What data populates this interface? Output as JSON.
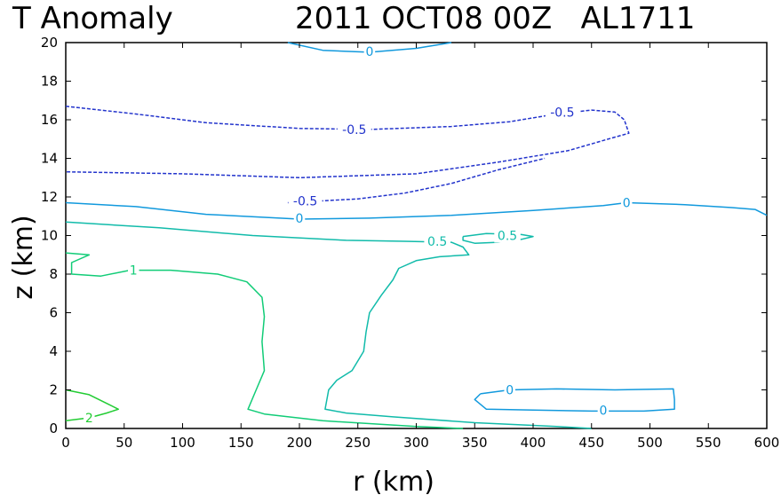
{
  "chart_data": {
    "type": "contour",
    "title_left": "T Anomaly",
    "title_right": "2011 OCT08 00Z   AL1711",
    "xlabel": "r (km)",
    "ylabel": "z (km)",
    "xlim": [
      0,
      600
    ],
    "ylim": [
      0,
      20
    ],
    "xticks": [
      0,
      50,
      100,
      150,
      200,
      250,
      300,
      350,
      400,
      450,
      500,
      550,
      600
    ],
    "yticks": [
      0,
      2,
      4,
      6,
      8,
      10,
      12,
      14,
      16,
      18,
      20
    ],
    "grid": false,
    "levels": [
      {
        "level": "-0.5",
        "color": "#2233cc",
        "dashed": true,
        "contours": [
          {
            "points": [
              [
                0,
                16.7
              ],
              [
                60,
                16.3
              ],
              [
                120,
                15.85
              ],
              [
                200,
                15.55
              ],
              [
                260,
                15.5
              ],
              [
                330,
                15.65
              ],
              [
                380,
                15.9
              ],
              [
                420,
                16.3
              ],
              [
                450,
                16.5
              ],
              [
                470,
                16.4
              ],
              [
                478,
                16.0
              ],
              [
                482,
                15.3
              ],
              [
                470,
                15.1
              ],
              [
                430,
                14.4
              ],
              [
                370,
                13.8
              ],
              [
                300,
                13.2
              ],
              [
                200,
                13.0
              ],
              [
                100,
                13.2
              ],
              [
                0,
                13.3
              ]
            ],
            "labels": [
              {
                "text": "-0.5",
                "x": 247,
                "y": 15.5
              },
              {
                "text": "-0.5",
                "x": 425,
                "y": 16.4
              }
            ]
          },
          {
            "points": [
              [
                190,
                11.7
              ],
              [
                250,
                11.9
              ],
              [
                290,
                12.2
              ],
              [
                330,
                12.7
              ],
              [
                370,
                13.4
              ],
              [
                410,
                14.0
              ]
            ],
            "labels": [
              {
                "text": "-0.5",
                "x": 205,
                "y": 11.8
              }
            ]
          }
        ]
      },
      {
        "level": "0",
        "color": "#1199dd",
        "dashed": false,
        "contours": [
          {
            "points": [
              [
                190,
                20.0
              ],
              [
                220,
                19.6
              ],
              [
                260,
                19.5
              ],
              [
                300,
                19.7
              ],
              [
                330,
                20.0
              ]
            ],
            "labels": [
              {
                "text": "0",
                "x": 260,
                "y": 19.55
              }
            ]
          },
          {
            "points": [
              [
                0,
                11.7
              ],
              [
                60,
                11.5
              ],
              [
                120,
                11.1
              ],
              [
                200,
                10.85
              ],
              [
                260,
                10.9
              ],
              [
                330,
                11.05
              ],
              [
                400,
                11.3
              ],
              [
                460,
                11.55
              ],
              [
                480,
                11.7
              ],
              [
                530,
                11.6
              ],
              [
                570,
                11.45
              ],
              [
                590,
                11.35
              ],
              [
                600,
                11.05
              ]
            ],
            "labels": [
              {
                "text": "0",
                "x": 200,
                "y": 10.9
              },
              {
                "text": "0",
                "x": 480,
                "y": 11.7
              }
            ]
          },
          {
            "points": [
              [
                355,
                1.8
              ],
              [
                380,
                2.0
              ],
              [
                420,
                2.05
              ],
              [
                470,
                2.0
              ],
              [
                520,
                2.05
              ],
              [
                521,
                1.5
              ],
              [
                521,
                1.0
              ],
              [
                495,
                0.9
              ],
              [
                450,
                0.9
              ],
              [
                400,
                0.95
              ],
              [
                360,
                1.0
              ],
              [
                350,
                1.5
              ],
              [
                355,
                1.8
              ]
            ],
            "labels": [
              {
                "text": "0",
                "x": 380,
                "y": 2.0
              },
              {
                "text": "0",
                "x": 460,
                "y": 0.95
              }
            ]
          }
        ]
      },
      {
        "level": "0.5",
        "color": "#11bbaa",
        "dashed": false,
        "contours": [
          {
            "points": [
              [
                0,
                10.7
              ],
              [
                80,
                10.4
              ],
              [
                160,
                10.0
              ],
              [
                240,
                9.75
              ],
              [
                290,
                9.7
              ],
              [
                330,
                9.65
              ],
              [
                340,
                9.4
              ],
              [
                345,
                9.0
              ],
              [
                320,
                8.9
              ],
              [
                300,
                8.7
              ],
              [
                285,
                8.3
              ],
              [
                280,
                7.7
              ],
              [
                270,
                6.9
              ],
              [
                260,
                6.0
              ],
              [
                257,
                5.0
              ],
              [
                255,
                4.0
              ],
              [
                245,
                3.0
              ],
              [
                232,
                2.5
              ],
              [
                225,
                2.0
              ],
              [
                222,
                1.0
              ],
              [
                240,
                0.8
              ],
              [
                280,
                0.6
              ],
              [
                350,
                0.3
              ],
              [
                420,
                0.1
              ],
              [
                450,
                0.0
              ]
            ],
            "labels": [
              {
                "text": "0.5",
                "x": 318,
                "y": 9.7
              }
            ]
          },
          {
            "points": [
              [
                340,
                9.95
              ],
              [
                360,
                10.1
              ],
              [
                390,
                10.05
              ],
              [
                400,
                9.95
              ],
              [
                390,
                9.8
              ],
              [
                370,
                9.65
              ],
              [
                350,
                9.6
              ],
              [
                340,
                9.75
              ],
              [
                340,
                9.95
              ]
            ],
            "labels": [
              {
                "text": "0.5",
                "x": 378,
                "y": 10.0
              }
            ]
          }
        ]
      },
      {
        "level": "1",
        "color": "#11cc77",
        "dashed": false,
        "contours": [
          {
            "points": [
              [
                0,
                9.1
              ],
              [
                20,
                9.0
              ],
              [
                5,
                8.6
              ],
              [
                5,
                8.0
              ],
              [
                30,
                7.9
              ],
              [
                55,
                8.2
              ],
              [
                90,
                8.2
              ],
              [
                130,
                8.0
              ],
              [
                155,
                7.6
              ],
              [
                168,
                6.8
              ],
              [
                170,
                5.8
              ],
              [
                168,
                4.5
              ],
              [
                170,
                3.0
              ],
              [
                163,
                2.0
              ],
              [
                156,
                1.0
              ],
              [
                170,
                0.75
              ],
              [
                220,
                0.4
              ],
              [
                300,
                0.1
              ],
              [
                340,
                0.0
              ]
            ],
            "labels": [
              {
                "text": "1",
                "x": 58,
                "y": 8.2
              }
            ]
          }
        ]
      },
      {
        "level": "2",
        "color": "#22cc33",
        "dashed": false,
        "contours": [
          {
            "points": [
              [
                0,
                2.0
              ],
              [
                20,
                1.75
              ],
              [
                35,
                1.3
              ],
              [
                45,
                1.0
              ],
              [
                35,
                0.8
              ],
              [
                20,
                0.55
              ],
              [
                0,
                0.4
              ]
            ],
            "labels": [
              {
                "text": "2",
                "x": 20,
                "y": 0.55
              }
            ]
          }
        ]
      }
    ]
  }
}
